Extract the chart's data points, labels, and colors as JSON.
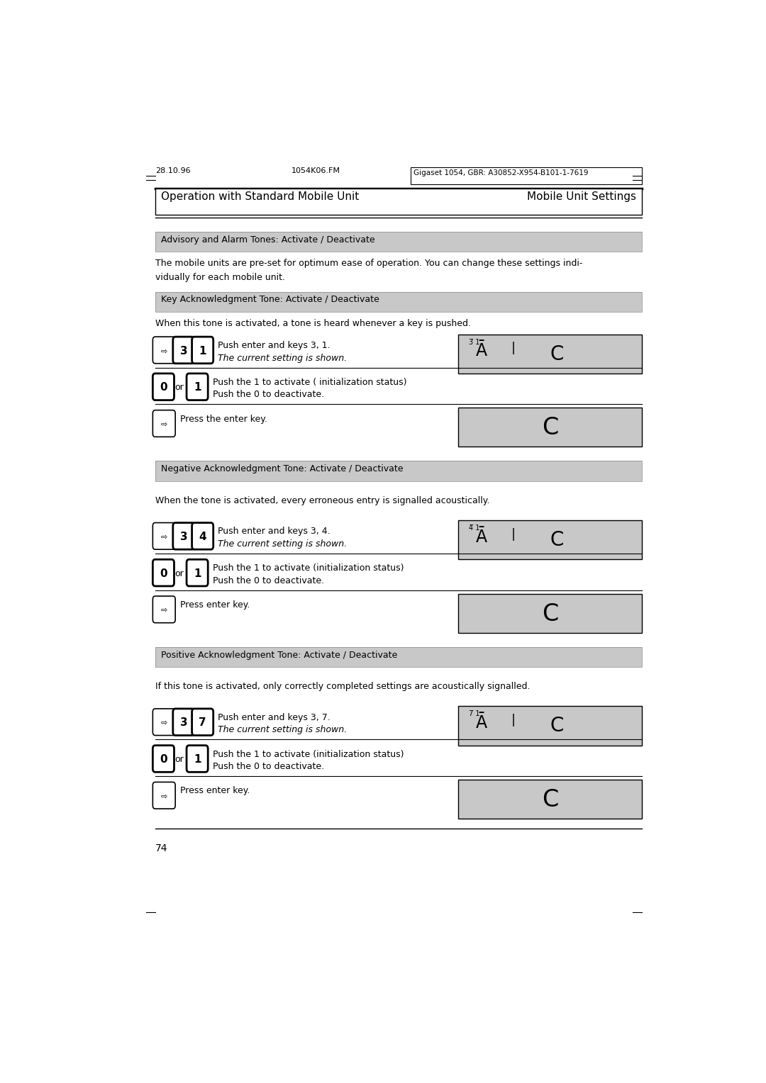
{
  "page_width": 10.8,
  "page_height": 15.28,
  "bg_color": "#ffffff",
  "header_left": "28.10.96",
  "header_center": "1054K06.FM",
  "header_right": "Gigaset 1054, GBR: A30852-X954-B101-1-7619",
  "title_left": "Operation with Standard Mobile Unit",
  "title_right": "Mobile Unit Settings",
  "section1_header": "Advisory and Alarm Tones: Activate / Deactivate",
  "section1_line1": "The mobile units are pre-set for optimum ease of operation. You can change these settings indi-",
  "section1_line2": "vidually for each mobile unit.",
  "section2_header": "Key Acknowledgment Tone: Activate / Deactivate",
  "section2_text": "When this tone is activated, a tone is heard whenever a key is pushed.",
  "section3_header": "Negative Acknowledgment Tone: Activate / Deactivate",
  "section3_text": "When the tone is activated, every erroneous entry is signalled acoustically.",
  "section4_header": "Positive Acknowledgment Tone: Activate / Deactivate",
  "section4_text": "If this tone is activated, only correctly completed settings are acoustically signalled.",
  "row1_desc1": "Push enter and keys 3, 1.",
  "row1_desc2": "The current setting is shown.",
  "row2_desc1": "Push the 1 to activate ( initialization status)",
  "row2_desc2": "Push the 0 to deactivate.",
  "row3_desc": "Press the enter key.",
  "rowA_desc1": "Push enter and keys 3, 4.",
  "rowA_desc2": "The current setting is shown.",
  "rowB_desc1": "Push the 1 to activate (initialization status)",
  "rowB_desc2": "Push the 0 to deactivate.",
  "rowC_desc": "Press enter key.",
  "rowD_desc1": "Push enter and keys 3, 7.",
  "rowD_desc2": "The current setting is shown.",
  "rowE_desc1": "Push the 1 to activate (initialization status)",
  "rowE_desc2": "Push the 0 to deactivate.",
  "rowF_desc": "Press enter key.",
  "footer_page": "74",
  "gray_color": "#c8c8c8"
}
